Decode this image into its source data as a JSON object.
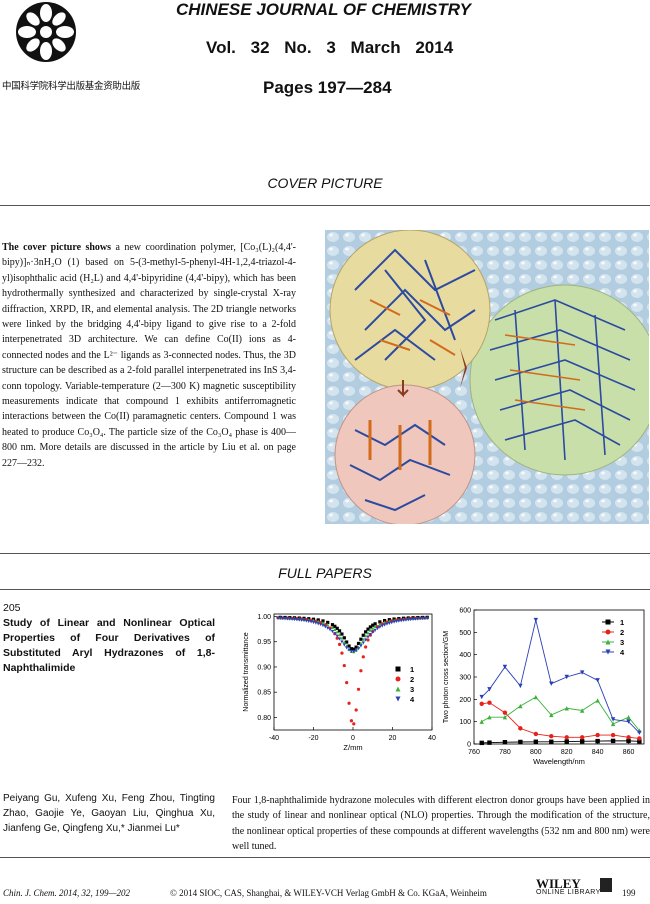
{
  "header": {
    "logo_caption": "中国科学院科学出版基金资助出版",
    "journal_name": "CHINESE JOURNAL OF CHEMISTRY",
    "volume_line": "Vol. 32   No. 3   March   2014",
    "pages": "Pages 197—284"
  },
  "cover": {
    "section_title": "COVER PICTURE",
    "lead": "The cover picture shows",
    "body": "a new coordination polymer, [Co₃(L)₂(4,4'-bipy)]ₙ·3nH₂O (1) based on 5-(3-methyl-5-phenyl-4H-1,2,4-triazol-4-yl)isophthalic acid (H₂L) and 4,4'-bipyridine (4,4'-bipy), which has been hydrothermally synthesized and characterized by single-crystal X-ray diffraction, XRPD, IR, and elemental analysis. The 2D triangle networks were linked by the bridging 4,4'-bipy ligand to give rise to a 2-fold interpenetrated 3D architecture. We can define Co(II) ions as 4-connected nodes and the L²⁻ ligands as 3-connected nodes. Thus, the 3D structure can be described as a 2-fold parallel interpenetrated ins InS 3,4-conn topology. Variable-temperature (2—300 K) magnetic susceptibility measurements indicate that compound 1 exhibits antiferromagnetic interactions between the Co(II) paramagnetic centers. Compound 1 was heated to produce Co₃O₄. The particle size of the Co₃O₄ phase is 400—800 nm. More details are discussed in the article by Liu et al. on page 227—232."
  },
  "full_papers": {
    "section_title": "FULL PAPERS",
    "page_number": "205",
    "title": "Study of Linear and Nonlinear Optical Properties of Four Derivatives of Substituted Aryl Hydrazones of 1,8-Naphthalimide",
    "authors": "Peiyang Gu, Xufeng Xu, Feng Zhou, Tingting Zhao, Gaojie Ye, Gaoyan Liu, Qinghua Xu, Jianfeng Ge, Qingfeng Xu,* Jianmei Lu*",
    "abstract": "Four 1,8-naphthalimide hydrazone molecules with different electron donor groups have been applied in the study of linear and nonlinear optical (NLO) properties. Through the modification of the structure, the nonlinear optical properties of these compounds at different wavelengths (532 nm and 800 nm) were well tuned."
  },
  "footer": {
    "citation": "Chin. J. Chem. 2014, 32, 199—202",
    "copyright": "© 2014 SIOC, CAS, Shanghai, & WILEY-VCH Verlag GmbH & Co. KGaA, Weinheim",
    "page": "199",
    "publisher_logo": "WILEY",
    "publisher_sub": "ONLINE LIBRARY"
  },
  "chart_data": [
    {
      "type": "scatter",
      "xlabel": "Z/mm",
      "ylabel": "Normalized transmittance",
      "xlim": [
        -40,
        40
      ],
      "ylim": [
        0.775,
        1.005
      ],
      "xticks": [
        -40,
        -20,
        0,
        20,
        40
      ],
      "yticks": [
        0.8,
        0.85,
        0.9,
        0.95,
        1.0
      ],
      "legend_position": "right",
      "series": [
        {
          "name": "1",
          "color": "#000000",
          "marker": "square",
          "dip": 0.935,
          "width": 6
        },
        {
          "name": "2",
          "color": "#e8211b",
          "marker": "circle",
          "dip": 0.785,
          "width": 4
        },
        {
          "name": "3",
          "color": "#3bb23a",
          "marker": "triangle-up",
          "dip": 0.93,
          "width": 7
        },
        {
          "name": "4",
          "color": "#2a3fb8",
          "marker": "triangle-down",
          "dip": 0.93,
          "width": 9
        }
      ]
    },
    {
      "type": "line",
      "xlabel": "Wavelength/nm",
      "ylabel": "Two photon cross section/GM",
      "xlim": [
        760,
        870
      ],
      "ylim": [
        0,
        600
      ],
      "xticks": [
        760,
        780,
        800,
        820,
        840,
        860
      ],
      "yticks": [
        0,
        100,
        200,
        300,
        400,
        500,
        600
      ],
      "legend_position": "top-right",
      "x": [
        765,
        770,
        780,
        790,
        800,
        810,
        820,
        830,
        840,
        850,
        860,
        867
      ],
      "series": [
        {
          "name": "1",
          "color": "#000000",
          "marker": "square",
          "values": [
            5,
            6,
            8,
            9,
            10,
            10,
            11,
            12,
            13,
            14,
            14,
            12
          ]
        },
        {
          "name": "2",
          "color": "#e8211b",
          "marker": "circle",
          "values": [
            180,
            185,
            140,
            70,
            45,
            35,
            30,
            30,
            40,
            40,
            30,
            25
          ]
        },
        {
          "name": "3",
          "color": "#3bb23a",
          "marker": "triangle-up",
          "values": [
            100,
            120,
            120,
            170,
            210,
            130,
            160,
            150,
            195,
            90,
            120,
            60
          ]
        },
        {
          "name": "4",
          "color": "#2a3fb8",
          "marker": "triangle-down",
          "values": [
            210,
            245,
            345,
            260,
            555,
            270,
            300,
            320,
            285,
            110,
            100,
            50
          ]
        }
      ]
    }
  ]
}
